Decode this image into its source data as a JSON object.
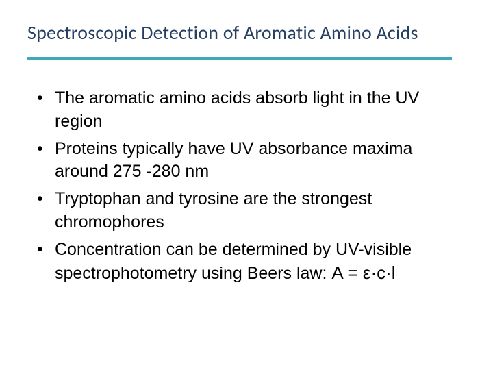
{
  "slide": {
    "title": "Spectroscopic Detection of Aromatic Amino Acids",
    "title_color": "#254061",
    "title_fontsize": 28,
    "divider_color": "#3fa9b8",
    "divider_height": 4,
    "background_color": "#ffffff",
    "bullets": [
      "The aromatic amino acids absorb light in the UV region",
      "Proteins typically have UV absorbance maxima around 275 -280 nm",
      "Tryptophan and tyrosine are the strongest chromophores",
      "Concentration can be determined by UV-visible spectrophotometry using Beers law:   "
    ],
    "formula": "A = ε·c·l",
    "bullet_fontsize": 25,
    "bullet_color": "#000000",
    "formula_fontsize": 26
  }
}
